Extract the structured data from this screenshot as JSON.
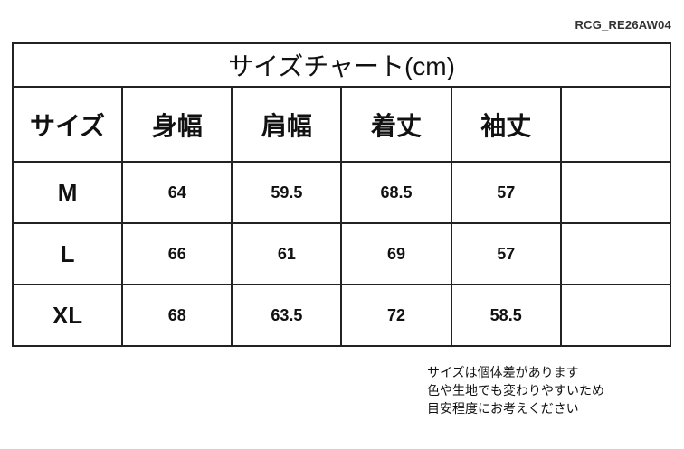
{
  "product_code": "RCG_RE26AW04",
  "table": {
    "title": "サイズチャート(cm)",
    "headers": [
      "サイズ",
      "身幅",
      "肩幅",
      "着丈",
      "袖丈",
      ""
    ],
    "rows": [
      {
        "size": "M",
        "values": [
          "64",
          "59.5",
          "68.5",
          "57",
          ""
        ]
      },
      {
        "size": "L",
        "values": [
          "66",
          "61",
          "69",
          "57",
          ""
        ]
      },
      {
        "size": "XL",
        "values": [
          "68",
          "63.5",
          "72",
          "58.5",
          ""
        ]
      }
    ]
  },
  "notes": [
    "サイズは個体差があります",
    "色や生地でも変わりやすいため",
    "目安程度にお考えください"
  ]
}
